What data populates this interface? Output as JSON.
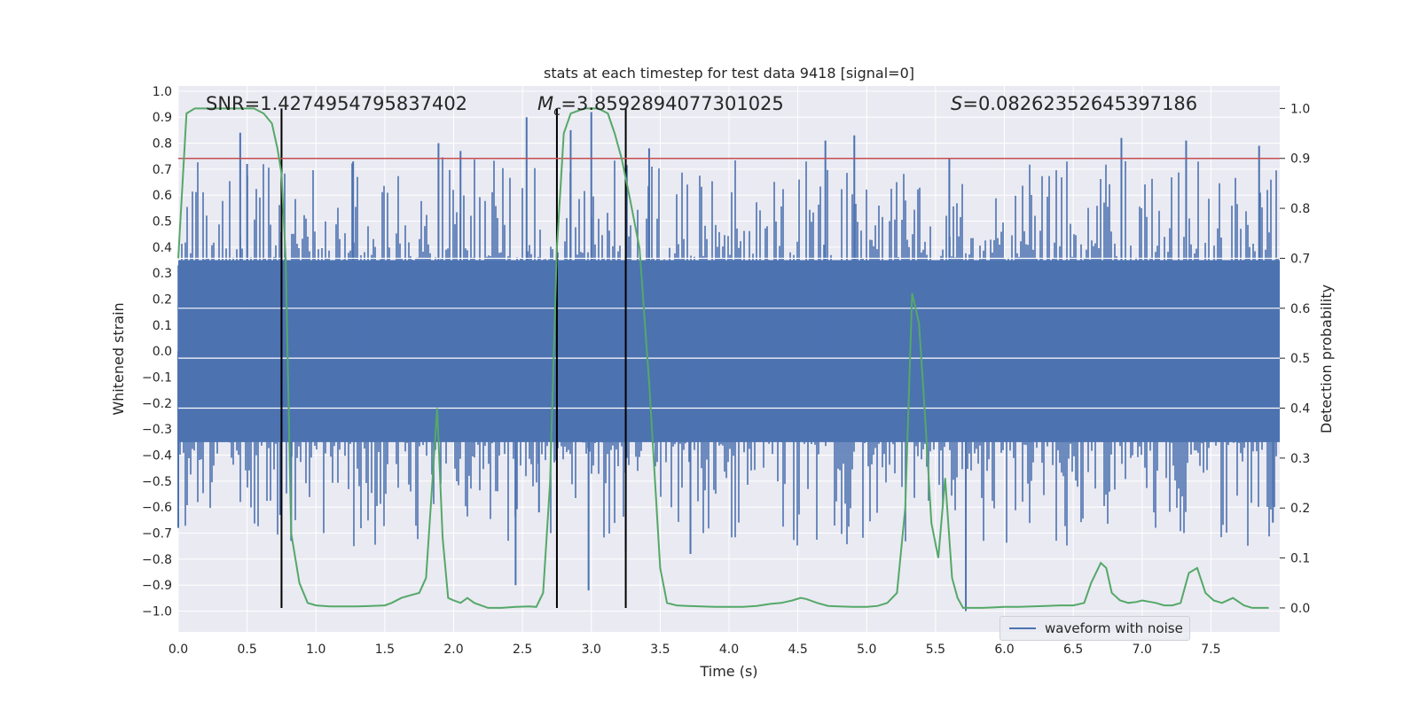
{
  "chart_data": {
    "type": "line",
    "title": "stats at each timestep for test data 9418 [signal=0]",
    "xlabel": "Time (s)",
    "ylabel_left": "Whitened strain",
    "ylabel_right": "Detection probability",
    "xlim": [
      0.0,
      8.0
    ],
    "ylim_left": [
      -1.08,
      1.02
    ],
    "ylim_right": [
      -0.048,
      1.045
    ],
    "x_ticks": [
      "0.0",
      "0.5",
      "1.0",
      "1.5",
      "2.0",
      "2.5",
      "3.0",
      "3.5",
      "4.0",
      "4.5",
      "5.0",
      "5.5",
      "6.0",
      "6.5",
      "7.0",
      "7.5"
    ],
    "y_left_ticks": [
      "1.0",
      "0.9",
      "0.8",
      "0.7",
      "0.6",
      "0.5",
      "0.4",
      "0.3",
      "0.2",
      "0.1",
      "0.0",
      "−0.1",
      "−0.2",
      "−0.3",
      "−0.4",
      "−0.5",
      "−0.6",
      "−0.7",
      "−0.8",
      "−0.9",
      "−1.0"
    ],
    "y_right_ticks": [
      "1.0",
      "0.9",
      "0.8",
      "0.7",
      "0.6",
      "0.5",
      "0.4",
      "0.3",
      "0.2",
      "0.1",
      "0.0"
    ],
    "annotations": {
      "snr": "SNR=1.4274954795837402",
      "mc_symbol": "M",
      "mc_sub": "c",
      "mc_value": "=3.8592894077301025",
      "s_symbol": "S",
      "s_value": "=0.08262352645397186"
    },
    "threshold": 0.9,
    "vertical_markers": [
      0.75,
      2.75,
      3.25
    ],
    "series": [
      {
        "name": "waveform with noise",
        "axis": "left",
        "color": "#4c72b0",
        "band": 0.35,
        "peaks": [
          {
            "x": 0.0,
            "y": -0.68
          },
          {
            "x": 0.45,
            "y": 0.84
          },
          {
            "x": 0.5,
            "y": 0.72
          },
          {
            "x": 0.74,
            "y": -0.63
          },
          {
            "x": 0.82,
            "y": -0.73
          },
          {
            "x": 1.27,
            "y": 0.73
          },
          {
            "x": 1.89,
            "y": 0.8
          },
          {
            "x": 2.05,
            "y": 0.77
          },
          {
            "x": 2.45,
            "y": -0.9
          },
          {
            "x": 2.53,
            "y": 0.9
          },
          {
            "x": 2.62,
            "y": -0.62
          },
          {
            "x": 2.85,
            "y": 0.85
          },
          {
            "x": 2.98,
            "y": -0.92
          },
          {
            "x": 3.0,
            "y": 0.92
          },
          {
            "x": 3.25,
            "y": -0.77
          },
          {
            "x": 3.42,
            "y": 0.78
          },
          {
            "x": 3.72,
            "y": -0.78
          },
          {
            "x": 4.7,
            "y": 0.81
          },
          {
            "x": 4.91,
            "y": 0.83
          },
          {
            "x": 5.6,
            "y": 0.74
          },
          {
            "x": 5.72,
            "y": -1.0
          },
          {
            "x": 6.85,
            "y": 0.82
          },
          {
            "x": 7.32,
            "y": 0.81
          },
          {
            "x": 7.85,
            "y": 0.79
          },
          {
            "x": 7.95,
            "y": -0.66
          }
        ]
      },
      {
        "name": "detection probability",
        "axis": "right",
        "color": "#55a868",
        "x": [
          0.0,
          0.06,
          0.12,
          0.2,
          0.3,
          0.4,
          0.5,
          0.55,
          0.62,
          0.68,
          0.72,
          0.75,
          0.78,
          0.82,
          0.88,
          0.94,
          1.0,
          1.1,
          1.2,
          1.3,
          1.4,
          1.5,
          1.55,
          1.62,
          1.68,
          1.75,
          1.8,
          1.84,
          1.88,
          1.92,
          1.96,
          2.0,
          2.05,
          2.1,
          2.15,
          2.25,
          2.35,
          2.45,
          2.55,
          2.6,
          2.65,
          2.7,
          2.75,
          2.8,
          2.85,
          2.95,
          3.05,
          3.12,
          3.17,
          3.22,
          3.28,
          3.35,
          3.42,
          3.5,
          3.55,
          3.62,
          3.7,
          3.8,
          3.9,
          4.0,
          4.1,
          4.2,
          4.3,
          4.38,
          4.46,
          4.52,
          4.56,
          4.64,
          4.72,
          4.8,
          4.9,
          5.0,
          5.08,
          5.15,
          5.22,
          5.28,
          5.33,
          5.38,
          5.42,
          5.47,
          5.52,
          5.57,
          5.62,
          5.66,
          5.7,
          5.74,
          5.78,
          5.84,
          5.92,
          6.0,
          6.1,
          6.2,
          6.3,
          6.4,
          6.5,
          6.58,
          6.63,
          6.7,
          6.74,
          6.78,
          6.84,
          6.9,
          6.96,
          7.0,
          7.06,
          7.1,
          7.16,
          7.22,
          7.28,
          7.34,
          7.4,
          7.46,
          7.52,
          7.58,
          7.66,
          7.74,
          7.8,
          7.86,
          7.92
        ],
        "y": [
          0.7,
          0.99,
          1.0,
          1.0,
          1.0,
          1.0,
          1.0,
          1.0,
          0.99,
          0.97,
          0.92,
          0.87,
          0.7,
          0.15,
          0.05,
          0.01,
          0.005,
          0.003,
          0.003,
          0.003,
          0.004,
          0.005,
          0.01,
          0.02,
          0.025,
          0.03,
          0.06,
          0.23,
          0.4,
          0.14,
          0.02,
          0.015,
          0.01,
          0.02,
          0.01,
          0.0,
          0.0,
          0.002,
          0.003,
          0.002,
          0.03,
          0.25,
          0.72,
          0.95,
          0.99,
          1.0,
          1.0,
          0.99,
          0.95,
          0.9,
          0.82,
          0.72,
          0.45,
          0.08,
          0.01,
          0.005,
          0.004,
          0.003,
          0.002,
          0.002,
          0.002,
          0.004,
          0.008,
          0.01,
          0.015,
          0.02,
          0.018,
          0.01,
          0.004,
          0.003,
          0.002,
          0.002,
          0.004,
          0.01,
          0.03,
          0.2,
          0.63,
          0.57,
          0.4,
          0.17,
          0.1,
          0.26,
          0.06,
          0.02,
          0.0,
          0.0,
          0.0,
          0.0,
          0.001,
          0.002,
          0.002,
          0.003,
          0.004,
          0.005,
          0.005,
          0.01,
          0.05,
          0.09,
          0.08,
          0.03,
          0.015,
          0.01,
          0.012,
          0.015,
          0.012,
          0.01,
          0.005,
          0.005,
          0.01,
          0.07,
          0.08,
          0.03,
          0.015,
          0.01,
          0.02,
          0.005,
          0.0,
          0.0,
          0.0
        ]
      }
    ],
    "legend": {
      "label": "waveform with noise",
      "placement": "lower-right"
    }
  }
}
